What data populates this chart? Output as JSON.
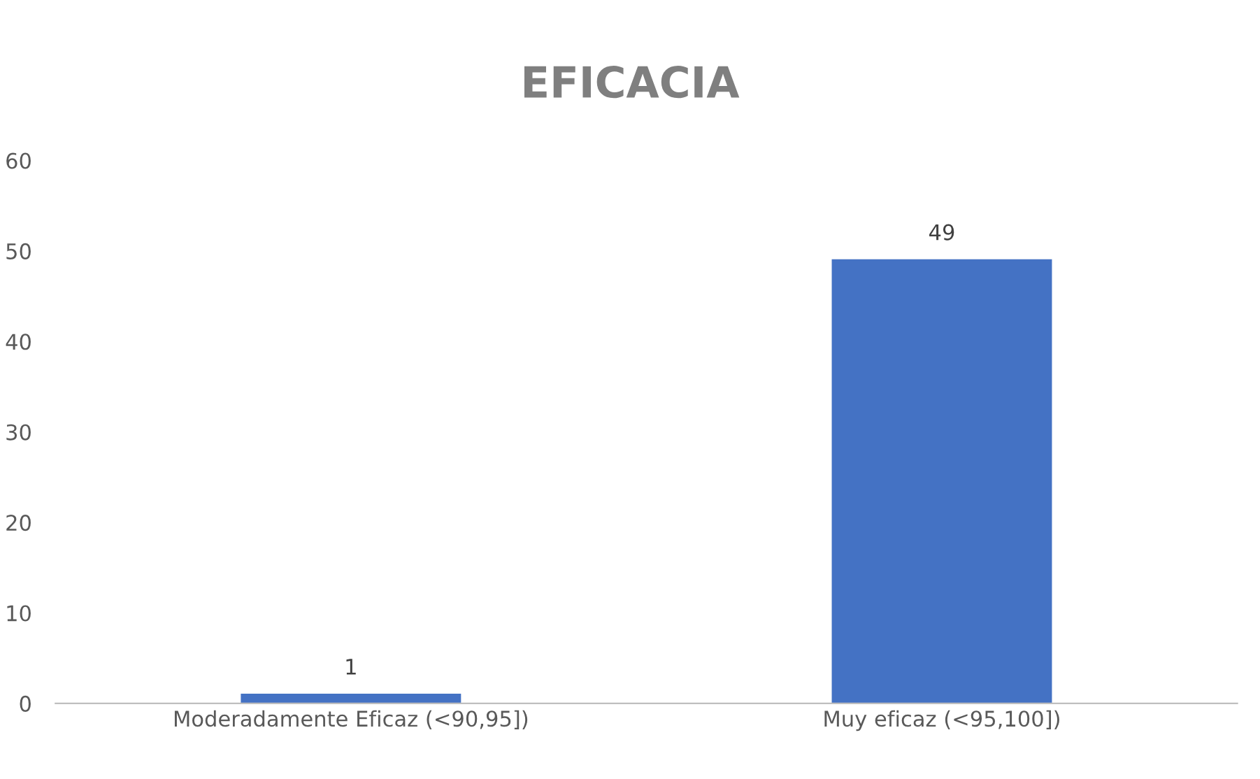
{
  "chart_data": {
    "type": "bar",
    "title": "EFICACIA",
    "categories": [
      "Moderadamente Eficaz (<90,95])",
      "Muy eficaz (<95,100])"
    ],
    "values": [
      1,
      49
    ],
    "color": "#4472c4",
    "ylim": [
      0,
      60
    ],
    "yticks": [
      0,
      10,
      20,
      30,
      40,
      50,
      60
    ],
    "grid": false,
    "data_labels": true
  }
}
